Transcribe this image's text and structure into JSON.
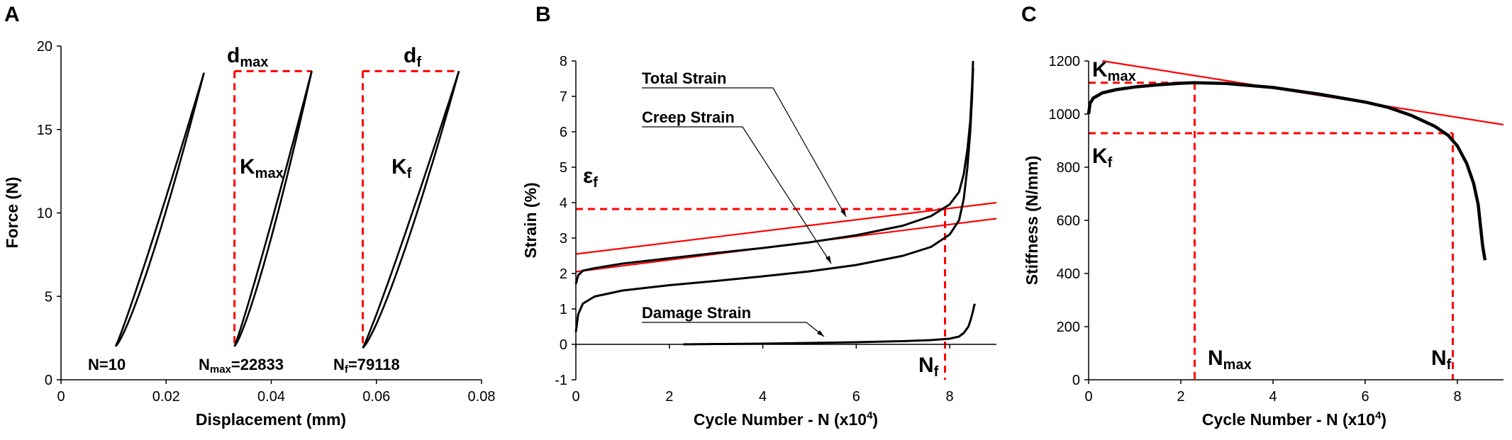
{
  "chart_data": [
    {
      "panel": "A",
      "type": "line",
      "xlabel": "Displacement (mm)",
      "ylabel": "Force (N)",
      "xlim": [
        0,
        0.08
      ],
      "ylim": [
        0,
        20
      ],
      "x_ticks": [
        "0",
        "0.02",
        "0.04",
        "0.06",
        "0.08"
      ],
      "y_ticks": [
        "0",
        "5",
        "10",
        "15",
        "20"
      ],
      "series": [
        {
          "name": "N=10",
          "x_min": 0.0104,
          "x_max": 0.0272,
          "y_min": 2.0,
          "y_max": 18.4
        },
        {
          "name": "Nmax=22833",
          "x_min": 0.033,
          "x_max": 0.0477,
          "y_min": 2.0,
          "y_max": 18.5
        },
        {
          "name": "Nf=79118",
          "x_min": 0.0574,
          "x_max": 0.0757,
          "y_min": 1.9,
          "y_max": 18.5
        }
      ],
      "annotations": {
        "dmax": {
          "base": "d",
          "sub": "max"
        },
        "df": {
          "base": "d",
          "sub": "f"
        },
        "kmax": {
          "base": "K",
          "sub": "max"
        },
        "kf": {
          "base": "K",
          "sub": "f"
        },
        "n10": "N=10",
        "nmax": {
          "base": "N",
          "sub": "max",
          "rest": "=22833"
        },
        "nf": {
          "base": "N",
          "sub": "f",
          "rest": "=79118"
        }
      }
    },
    {
      "panel": "B",
      "type": "line",
      "xlabel": {
        "base": "Cycle Number - N (x10",
        "sup": "4",
        "end": ")"
      },
      "ylabel": "Strain (%)",
      "xlim": [
        0,
        9
      ],
      "ylim": [
        -1,
        8
      ],
      "x_ticks": [
        "0",
        "2",
        "4",
        "6",
        "8"
      ],
      "y_ticks": [
        "-1",
        "0",
        "1",
        "2",
        "3",
        "4",
        "5",
        "6",
        "7",
        "8"
      ],
      "series": [
        {
          "name": "Total Strain",
          "x": [
            0,
            0.05,
            0.15,
            0.4,
            1,
            2,
            3,
            4,
            5,
            6,
            7,
            7.6,
            8.0,
            8.2,
            8.3,
            8.38,
            8.44,
            8.48,
            8.5
          ],
          "y": [
            1.7,
            1.95,
            2.08,
            2.15,
            2.28,
            2.43,
            2.58,
            2.72,
            2.88,
            3.08,
            3.35,
            3.62,
            3.95,
            4.3,
            4.8,
            5.5,
            6.3,
            7.3,
            8.0
          ]
        },
        {
          "name": "Creep Strain",
          "x": [
            0,
            0.05,
            0.15,
            0.4,
            1,
            2,
            3,
            4,
            5,
            6,
            7,
            7.6,
            8.0,
            8.2,
            8.3,
            8.38,
            8.44,
            8.48,
            8.5
          ],
          "y": [
            0.35,
            0.85,
            1.15,
            1.35,
            1.52,
            1.67,
            1.79,
            1.92,
            2.06,
            2.24,
            2.5,
            2.75,
            3.1,
            3.5,
            4.1,
            5.0,
            6.0,
            7.0,
            7.8
          ]
        },
        {
          "name": "Damage Strain",
          "x": [
            2.3,
            3,
            4,
            5,
            6,
            7,
            7.6,
            8.0,
            8.2,
            8.3,
            8.4,
            8.45,
            8.5,
            8.53,
            8.55
          ],
          "y": [
            0.0,
            0.01,
            0.02,
            0.04,
            0.06,
            0.09,
            0.12,
            0.16,
            0.22,
            0.32,
            0.5,
            0.7,
            0.95,
            1.12,
            1.1
          ]
        }
      ],
      "fit_lines": [
        {
          "x": [
            0,
            9
          ],
          "y": [
            2.55,
            4.0
          ]
        },
        {
          "x": [
            0,
            9
          ],
          "y": [
            2.05,
            3.55
          ]
        }
      ],
      "reference_lines": {
        "epsilon_f": 3.82,
        "nf": 7.9
      },
      "annotations": {
        "total": "Total Strain",
        "creep": "Creep Strain",
        "damage": "Damage Strain",
        "epsf": {
          "base": "ε",
          "sub": "f"
        },
        "nf": {
          "base": "N",
          "sub": "f"
        }
      }
    },
    {
      "panel": "C",
      "type": "line",
      "xlabel": {
        "base": "Cycle Number - N (x10",
        "sup": "4",
        "end": ")"
      },
      "ylabel": "Stiffness (N/mm)",
      "xlim": [
        0,
        9
      ],
      "ylim": [
        0,
        1200
      ],
      "x_ticks": [
        "0",
        "2",
        "4",
        "6",
        "8"
      ],
      "y_ticks": [
        "0",
        "200",
        "400",
        "600",
        "800",
        "1000",
        "1200"
      ],
      "series": [
        {
          "name": "Stiffness",
          "x": [
            0,
            0.03,
            0.1,
            0.3,
            0.6,
            1,
            1.5,
            2,
            2.3,
            3,
            4,
            5,
            6,
            6.5,
            7,
            7.5,
            7.8,
            8.0,
            8.2,
            8.35,
            8.45,
            8.5,
            8.55,
            8.6
          ],
          "y": [
            1000,
            1040,
            1060,
            1080,
            1092,
            1102,
            1110,
            1116,
            1118,
            1115,
            1100,
            1075,
            1045,
            1025,
            995,
            955,
            920,
            880,
            815,
            740,
            660,
            580,
            500,
            450
          ]
        }
      ],
      "fit_lines": [
        {
          "x": [
            0.3,
            9
          ],
          "y": [
            1200,
            960
          ]
        }
      ],
      "reference_lines": {
        "kmax": 1118,
        "kf": 928,
        "nmax": 2.3,
        "nf": 7.9
      },
      "annotations": {
        "kmax": {
          "base": "K",
          "sub": "max"
        },
        "kf": {
          "base": "K",
          "sub": "f"
        },
        "nmax": {
          "base": "N",
          "sub": "max"
        },
        "nf": {
          "base": "N",
          "sub": "f"
        }
      }
    }
  ],
  "panel_labels": [
    "A",
    "B",
    "C"
  ],
  "colors": {
    "curve": "#000000",
    "fit": "#ff0000",
    "dashed": "#ff0000",
    "axis": "#000000"
  }
}
